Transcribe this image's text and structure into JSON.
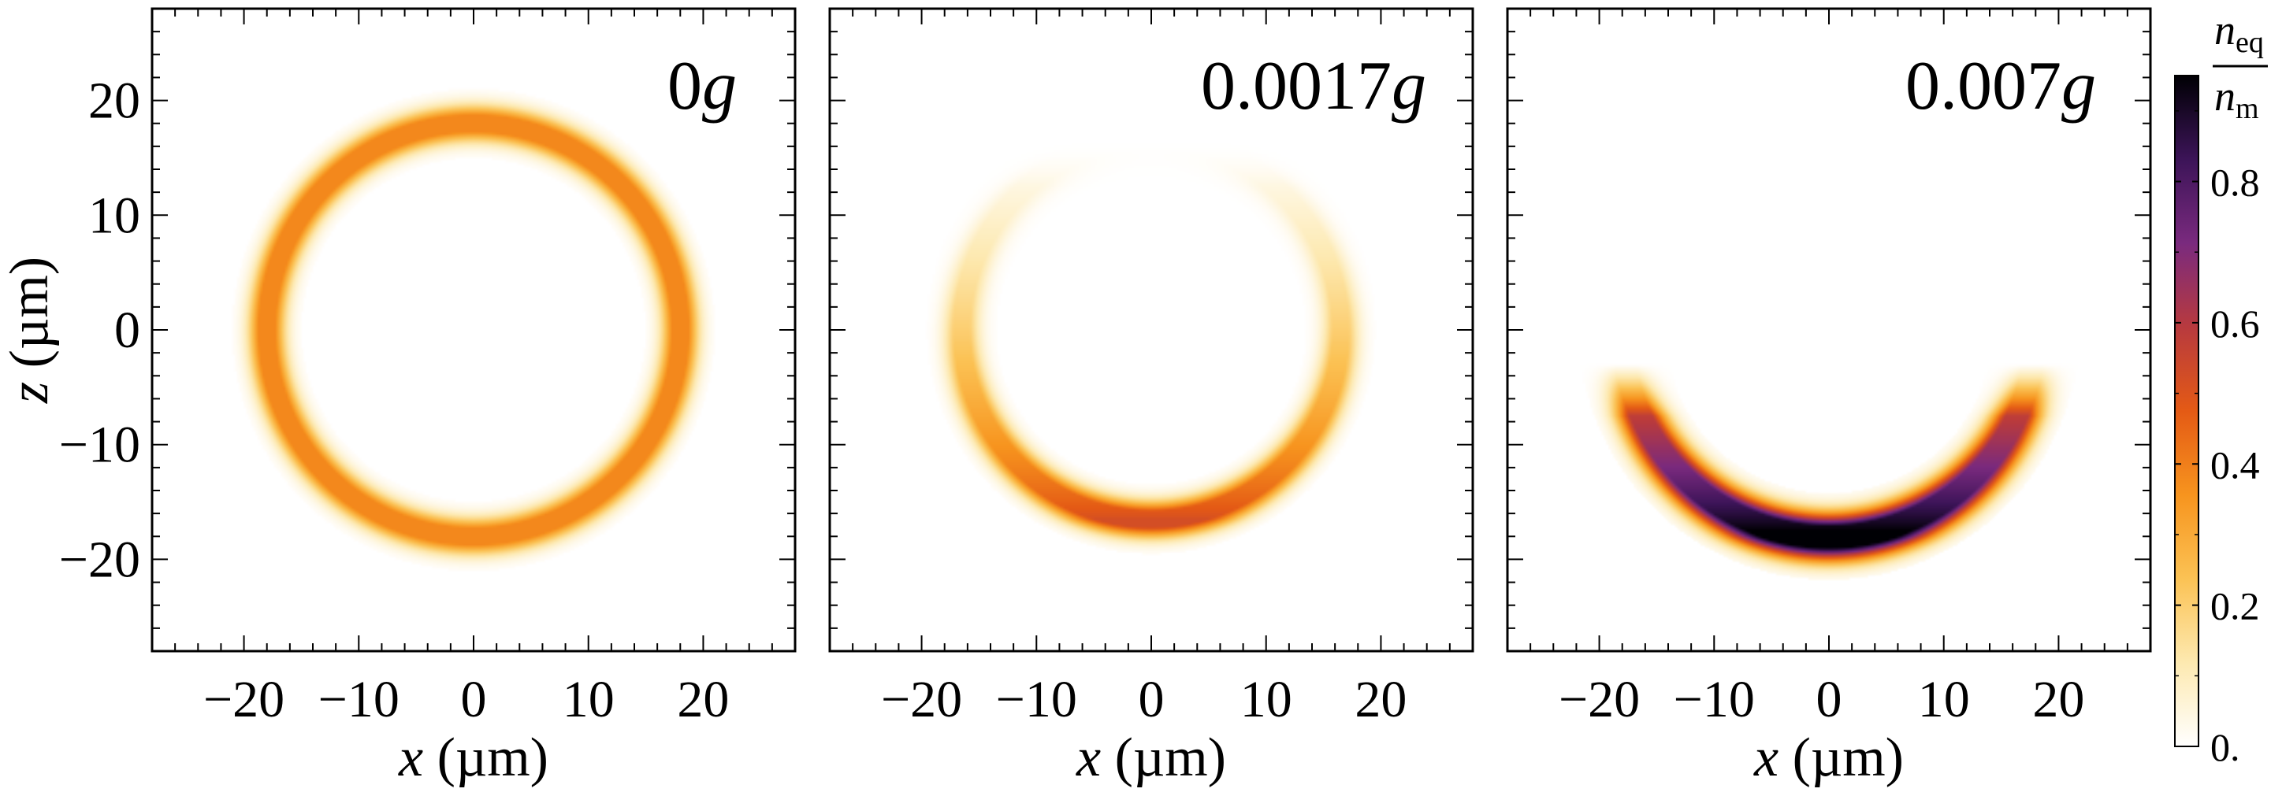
{
  "chart_data": [
    {
      "type": "heatmap",
      "panel_label": "0g",
      "label_number": "0",
      "label_unit": "g",
      "xlabel_var": "x",
      "xlabel_unit": " (µm)",
      "ylabel_var": "z",
      "ylabel_unit": " (µm)",
      "xlim": [
        -28,
        28
      ],
      "ylim": [
        -28,
        28
      ],
      "xticks": [
        -20,
        -10,
        0,
        10,
        20
      ],
      "xtick_labels": [
        "−20",
        "−10",
        "0",
        "10",
        "20"
      ],
      "yticks": [
        -20,
        -10,
        0,
        10,
        20
      ],
      "ytick_labels": [
        "−20",
        "−10",
        "0",
        "10",
        "20"
      ],
      "density_profile": {
        "ring_center_um": [
          0,
          0
        ],
        "ring_radius_um": 18,
        "ring_halfwidth_um": 1.6,
        "n_bottom": 0.38,
        "n_top": 0.38,
        "vanish_above_z_um": null
      }
    },
    {
      "type": "heatmap",
      "panel_label": "0.0017g",
      "label_number": "0.0017",
      "label_unit": "g",
      "xlabel_var": "x",
      "xlabel_unit": " (µm)",
      "xlim": [
        -28,
        28
      ],
      "ylim": [
        -28,
        28
      ],
      "xticks": [
        -20,
        -10,
        0,
        10,
        20
      ],
      "xtick_labels": [
        "−20",
        "−10",
        "0",
        "10",
        "20"
      ],
      "density_profile": {
        "ring_center_um": [
          0,
          0
        ],
        "ring_radius_um": 16.5,
        "ring_halfwidth_um": 1.6,
        "n_bottom": 0.52,
        "n_top": 0.0,
        "vanish_above_z_um": 17
      }
    },
    {
      "type": "heatmap",
      "panel_label": "0.007g",
      "label_number": "0.007",
      "label_unit": "g",
      "xlabel_var": "x",
      "xlabel_unit": " (µm)",
      "xlim": [
        -28,
        28
      ],
      "ylim": [
        -28,
        28
      ],
      "xticks": [
        -20,
        -10,
        0,
        10,
        20
      ],
      "xtick_labels": [
        "−20",
        "−10",
        "0",
        "10",
        "20"
      ],
      "density_profile": {
        "ring_center_um": [
          0,
          0
        ],
        "ring_radius_um": 18,
        "ring_halfwidth_um": 2.0,
        "n_bottom": 1.0,
        "n_top": 0.0,
        "vanish_above_z_um": -3
      }
    }
  ],
  "colorbar": {
    "title_num": "n",
    "title_num_sub": "eq",
    "title_den": "n",
    "title_den_sub": "m",
    "range": [
      0,
      0.95
    ],
    "ticks": [
      0,
      0.2,
      0.4,
      0.6,
      0.8
    ],
    "tick_labels": [
      "0.",
      "0.2",
      "0.4",
      "0.6",
      "0.8"
    ],
    "colormap": [
      "#ffffff",
      "#fde9b0",
      "#fbc254",
      "#f7941e",
      "#e45a15",
      "#b83a3e",
      "#7a2a7e",
      "#3c1458",
      "#000004"
    ]
  }
}
